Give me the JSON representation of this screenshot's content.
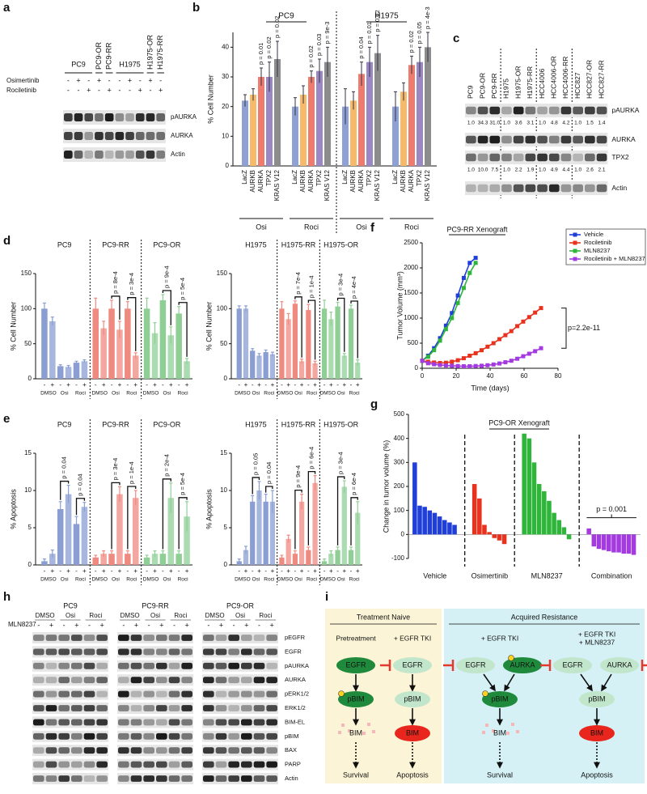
{
  "panel_labels": [
    "a",
    "b",
    "c",
    "d",
    "e",
    "f",
    "g",
    "h",
    "i"
  ],
  "panel_a": {
    "cell_lines": [
      "PC9",
      "PC9-OR",
      "PC9-RR",
      "H1975",
      "H1975-OR",
      "H1975-RR"
    ],
    "rows": [
      {
        "label": "Osimertinib",
        "signs": [
          "-",
          "+",
          "-",
          "+",
          "-",
          "-",
          "+",
          "-",
          "+",
          "-"
        ]
      },
      {
        "label": "Rociletinib",
        "signs": [
          "-",
          "-",
          "+",
          "-",
          "+",
          "-",
          "-",
          "+",
          "-",
          "+"
        ]
      }
    ],
    "blots": [
      "pAURKA",
      "AURKA",
      "Actin"
    ]
  },
  "panel_b": {
    "type": "bar",
    "cell_lines": [
      "PC9",
      "H1975"
    ],
    "drugs": [
      "Osi",
      "Roci",
      "Osi",
      "Roci"
    ],
    "categories": [
      "LacZ",
      "AURKB",
      "AURKA",
      "TPX2",
      "KRAS V12"
    ],
    "colors": [
      "#8fa1d4",
      "#f7b96a",
      "#ef7b6f",
      "#9b88c2",
      "#8c8c8c"
    ],
    "y_label": "% Cell Number",
    "ylim": [
      0,
      45
    ],
    "yticks": [
      0,
      10,
      20,
      30,
      40
    ],
    "groups": [
      {
        "values": [
          22,
          24,
          30,
          30,
          36
        ],
        "errors": [
          2,
          2,
          3,
          5,
          6
        ],
        "p_labels": [
          null,
          null,
          "p = 0.01",
          "p = 0.02",
          "p = 0.02"
        ]
      },
      {
        "values": [
          20,
          24,
          30,
          32,
          35
        ],
        "errors": [
          3,
          3,
          2,
          4,
          5
        ],
        "p_labels": [
          null,
          null,
          "p = 0.02",
          "p = 0.03",
          "p = 9e-3"
        ]
      },
      {
        "values": [
          20,
          22,
          31,
          35,
          38
        ],
        "errors": [
          6,
          3,
          4,
          5,
          6
        ],
        "p_labels": [
          null,
          null,
          "p = 0.04",
          "p = 0.01",
          "p = 0.02"
        ]
      },
      {
        "values": [
          20,
          25,
          34,
          35,
          40
        ],
        "errors": [
          5,
          3,
          3,
          5,
          5
        ],
        "p_labels": [
          null,
          null,
          "p = 0.02",
          "p = 0.05",
          "p = 4e-3"
        ]
      }
    ]
  },
  "panel_c": {
    "cell_lines": [
      "PC9",
      "PC9-OR",
      "PC9-RR",
      "H1975",
      "H1975-OR",
      "H1975-RR",
      "HCC4006",
      "HCC4006-OR",
      "HCC4006-RR",
      "HCC827",
      "HCC827-OR",
      "HCC827-RR"
    ],
    "rows": [
      {
        "name": "pAURKA",
        "quant": [
          "1.0",
          "34.3",
          "31.0",
          "1.0",
          "3.6",
          "3.1",
          "1.0",
          "4.8",
          "4.2",
          "1.0",
          "1.5",
          "1.4"
        ]
      },
      {
        "name": "AURKA"
      },
      {
        "name": "TPX2",
        "quant": [
          "1.0",
          "10.0",
          "7.5",
          "1.0",
          "2.2",
          "1.9",
          "1.0",
          "4.9",
          "4.4",
          "1.0",
          "2.6",
          "2.1"
        ]
      },
      {
        "name": "Actin"
      }
    ]
  },
  "panel_d": {
    "type": "bar",
    "charts": [
      {
        "y_label": "% Cell Number",
        "ylim": [
          0,
          150
        ],
        "yticks": [
          0,
          50,
          100,
          150
        ],
        "sign_labels": [
          "-",
          "+",
          "-",
          "+",
          "-",
          "+"
        ],
        "treatments": [
          "DMSO",
          "Osi",
          "Roci"
        ],
        "groups": [
          {
            "name": "PC9",
            "color": "#8a9ed3",
            "values": [
              100,
              82,
              18,
              17,
              23,
              25
            ],
            "errors": [
              8,
              6,
              2,
              2,
              2,
              2
            ],
            "p_labels": [
              null,
              null
            ]
          },
          {
            "name": "PC9-RR",
            "color": "#ef8a80",
            "values": [
              100,
              72,
              100,
              70,
              100,
              33
            ],
            "errors": [
              15,
              10,
              12,
              12,
              10,
              4
            ],
            "p_labels": [
              "p = 8e-4",
              "p = 3e-4"
            ]
          },
          {
            "name": "PC9-OR",
            "color": "#8fcf95",
            "values": [
              100,
              65,
              112,
              62,
              93,
              25
            ],
            "errors": [
              15,
              15,
              8,
              12,
              10,
              4
            ],
            "p_labels": [
              "p = 9e-4",
              "p = 5e-4"
            ]
          }
        ]
      },
      {
        "y_label": "% Cell Number",
        "ylim": [
          0,
          150
        ],
        "yticks": [
          0,
          50,
          100,
          150
        ],
        "sign_labels": [
          "-",
          "+",
          "-",
          "+",
          "-",
          "+"
        ],
        "treatments": [
          "DMSO",
          "Osi",
          "Roci"
        ],
        "groups": [
          {
            "name": "H1975",
            "color": "#8a9ed3",
            "values": [
              100,
              100,
              40,
              33,
              38,
              35
            ],
            "errors": [
              4,
              4,
              3,
              3,
              3,
              3
            ],
            "p_labels": [
              null,
              null
            ]
          },
          {
            "name": "H1975-RR",
            "color": "#ef8a80",
            "values": [
              100,
              85,
              107,
              25,
              98,
              22
            ],
            "errors": [
              10,
              8,
              4,
              3,
              8,
              3
            ],
            "p_labels": [
              "p = 7e-4",
              "p = 1e-4"
            ]
          },
          {
            "name": "H1975-OR",
            "color": "#8fcf95",
            "values": [
              100,
              85,
              103,
              33,
              100,
              23
            ],
            "errors": [
              12,
              10,
              6,
              3,
              5,
              4
            ],
            "p_labels": [
              "p = 3e-4",
              "p = 4e-4"
            ]
          }
        ]
      }
    ]
  },
  "panel_e": {
    "type": "bar",
    "charts": [
      {
        "y_label": "% Apoptosis",
        "ylim": [
          0,
          15
        ],
        "yticks": [
          0,
          5,
          10,
          15
        ],
        "sign_labels": [
          "-",
          "+",
          "-",
          "+",
          "-",
          "+"
        ],
        "treatments": [
          "DMSO",
          "Osi",
          "Roci"
        ],
        "groups": [
          {
            "name": "PC9",
            "color": "#8a9ed3",
            "values": [
              0.5,
              1.5,
              7.5,
              9.5,
              5.5,
              7.8
            ],
            "errors": [
              0.3,
              0.5,
              1,
              1.2,
              1,
              0.6
            ],
            "p_labels": [
              "p = 0.04",
              "p = 0.04"
            ]
          },
          {
            "name": "PC9-RR",
            "color": "#ef8a80",
            "values": [
              1,
              1.5,
              1.5,
              9.5,
              1.5,
              9
            ],
            "errors": [
              0.3,
              0.4,
              0.4,
              1,
              0.4,
              1
            ],
            "p_labels": [
              "p = 3e-4",
              "p = 1e-4"
            ]
          },
          {
            "name": "PC9-OR",
            "color": "#8fcf95",
            "values": [
              1,
              1.5,
              1.5,
              9,
              1.5,
              6.5
            ],
            "errors": [
              0.3,
              0.4,
              0.4,
              2,
              0.4,
              2
            ],
            "p_labels": [
              "p = 2e-4",
              "p = 5e-4"
            ]
          }
        ]
      },
      {
        "y_label": "% Apoptosis",
        "ylim": [
          0,
          15
        ],
        "yticks": [
          0,
          5,
          10,
          15
        ],
        "sign_labels": [
          "-",
          "+",
          "-",
          "+",
          "-",
          "+"
        ],
        "treatments": [
          "DMSO",
          "Osi",
          "Roci"
        ],
        "groups": [
          {
            "name": "H1975",
            "color": "#8a9ed3",
            "values": [
              0.5,
              2,
              8.5,
              10,
              8.5,
              8.5
            ],
            "errors": [
              0.3,
              0.5,
              0.8,
              1.2,
              1,
              1.5
            ],
            "p_labels": [
              "p = 0.05",
              "p = 0.04"
            ]
          },
          {
            "name": "H1975-RR",
            "color": "#ef8a80",
            "values": [
              1,
              3.5,
              1.5,
              8.5,
              2,
              11
            ],
            "errors": [
              0.3,
              0.5,
              0.4,
              1,
              0.4,
              1
            ],
            "p_labels": [
              "p = 9e-4",
              "p = 6e-4"
            ]
          },
          {
            "name": "H1975-OR",
            "color": "#8fcf95",
            "values": [
              0.5,
              1.5,
              2,
              10.5,
              2,
              7
            ],
            "errors": [
              0.3,
              0.4,
              0.4,
              0.8,
              0.4,
              1.5
            ],
            "p_labels": [
              "p = 3e-4",
              "p = 6e-4"
            ]
          }
        ]
      }
    ]
  },
  "panel_f": {
    "type": "line",
    "title": "PC9-RR Xenograft",
    "x_label": "Time (days)",
    "y_label": "Tumor Volume (mm³)",
    "annotation": "p=2.2e-11",
    "x": [
      0,
      3.5,
      7,
      10.5,
      14,
      17.5,
      21,
      24.5,
      28,
      31.5,
      35,
      38.5,
      42,
      45.5,
      49,
      52.5,
      56,
      59.5,
      63,
      66.5,
      70
    ],
    "xlim": [
      0,
      80
    ],
    "xticks": [
      0,
      20,
      40,
      60,
      80
    ],
    "ylim": [
      0,
      2500
    ],
    "yticks": [
      0,
      500,
      1000,
      1500,
      2000,
      2500
    ],
    "series": [
      {
        "name": "Vehicle",
        "color": "#1f3fd8",
        "values": [
          150,
          250,
          400,
          600,
          850,
          1100,
          1450,
          1800,
          2100,
          2200,
          null,
          null,
          null,
          null,
          null,
          null,
          null,
          null,
          null,
          null,
          null
        ]
      },
      {
        "name": "Rociletinib",
        "color": "#e8321e",
        "values": [
          150,
          130,
          115,
          105,
          110,
          130,
          160,
          200,
          250,
          300,
          360,
          430,
          500,
          580,
          660,
          740,
          840,
          930,
          1020,
          1110,
          1200
        ]
      },
      {
        "name": "MLN8237",
        "color": "#2fb53a",
        "values": [
          150,
          230,
          360,
          550,
          780,
          1000,
          1300,
          1600,
          1900,
          2100,
          null,
          null,
          null,
          null,
          null,
          null,
          null,
          null,
          null,
          null,
          null
        ]
      },
      {
        "name": "Rociletinib + MLN8237",
        "color": "#a33be0",
        "values": [
          150,
          100,
          80,
          65,
          55,
          50,
          45,
          40,
          40,
          45,
          50,
          60,
          75,
          95,
          120,
          150,
          190,
          240,
          290,
          340,
          400
        ]
      }
    ]
  },
  "panel_g": {
    "type": "bar",
    "title": "PC9-OR Xenograft",
    "y_label": "Change in tumor volume (%)",
    "annotation": "p = 0.001",
    "ylim": [
      -100,
      500
    ],
    "yticks": [
      -100,
      0,
      100,
      200,
      300,
      400,
      500
    ],
    "groups": [
      {
        "name": "Vehicle",
        "color": "#1f3fd8",
        "values": [
          300,
          120,
          115,
          100,
          90,
          75,
          60,
          50,
          40
        ]
      },
      {
        "name": "Osimertinib",
        "color": "#e8321e",
        "values": [
          210,
          150,
          40,
          10,
          -15,
          -25,
          -40
        ]
      },
      {
        "name": "MLN8237",
        "color": "#2fb53a",
        "values": [
          420,
          400,
          300,
          210,
          180,
          140,
          90,
          60,
          30,
          -20
        ]
      },
      {
        "name": "Combination",
        "color": "#a33be0",
        "values": [
          25,
          -50,
          -60,
          -65,
          -70,
          -75,
          -75,
          -80,
          -80,
          -85
        ]
      }
    ]
  },
  "panel_h": {
    "cell_lines": [
      "PC9",
      "PC9-RR",
      "PC9-OR"
    ],
    "treatments": [
      "DMSO",
      "Osi",
      "Roci"
    ],
    "signs": [
      "-",
      "+",
      "-",
      "+",
      "-",
      "+"
    ],
    "mln_label": "MLN8237",
    "blots": [
      "pEGFR",
      "EGFR",
      "pAURKA",
      "AURKA",
      "pERK1/2",
      "ERK1/2",
      "BIM-EL",
      "pBIM",
      "BAX",
      "PARP",
      "Actin"
    ]
  },
  "panel_i": {
    "sections": [
      {
        "title": "Treatment Naive",
        "columns": [
          {
            "header": [
              "Pretreatment"
            ],
            "nodes": [
              "EGFR",
              "pBIM",
              "BIM"
            ],
            "outcome": "Survival"
          },
          {
            "header": [
              "+ EGFR TKI"
            ],
            "nodes": [
              "EGFR",
              "pBIM",
              "BIM"
            ],
            "outcome": "Apoptosis"
          }
        ]
      },
      {
        "title": "Acquired Resistance",
        "columns": [
          {
            "header": [
              "+ EGFR TKI"
            ],
            "nodes": [
              "EGFR",
              "AURKA",
              "pBIM",
              "BIM"
            ],
            "outcome": "Survival"
          },
          {
            "header": [
              "+ EGFR TKI",
              "+ MLN8237"
            ],
            "nodes": [
              "EGFR",
              "AURKA",
              "pBIM",
              "BIM"
            ],
            "outcome": "Apoptosis"
          }
        ]
      }
    ]
  }
}
